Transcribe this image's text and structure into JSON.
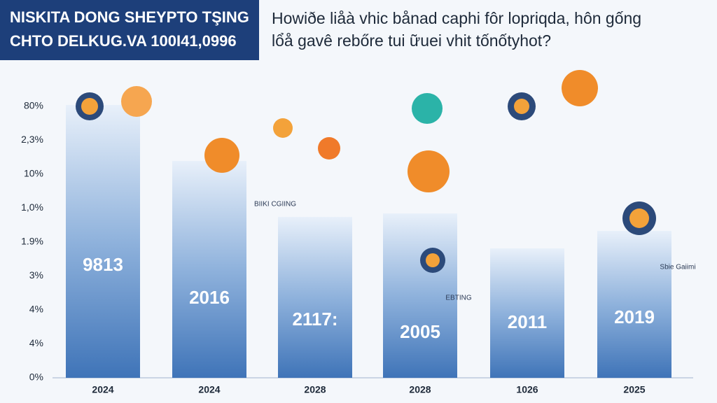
{
  "header": {
    "title_lines": [
      "NISKITA DONG SHEYPTO TŞING",
      "CHTO DELKUG.VA 100I41,0996"
    ],
    "question_lines": [
      "Howiðe liåà vhic bånad caphi fôr lopriqda, hôn gống",
      "lổå gavê rebőre tui ữuei vhit tốnốtyhot?"
    ]
  },
  "y_axis_labels": [
    "80%",
    "2,3%",
    "10%",
    "1,0%",
    "1.9%",
    "3%",
    "4%",
    "4%",
    "0%"
  ],
  "columns": [
    {
      "year": "2024",
      "label": "9813"
    },
    {
      "year": "2024",
      "label": "2016"
    },
    {
      "year": "2028",
      "label": "2117:"
    },
    {
      "year": "2028",
      "label": "2005"
    },
    {
      "year": "1026",
      "label": "2011"
    },
    {
      "year": "2025",
      "label": "2019"
    }
  ],
  "tags": [
    "BIIKI CGIING",
    "EBTING",
    "Sbie Gaiimi"
  ]
}
